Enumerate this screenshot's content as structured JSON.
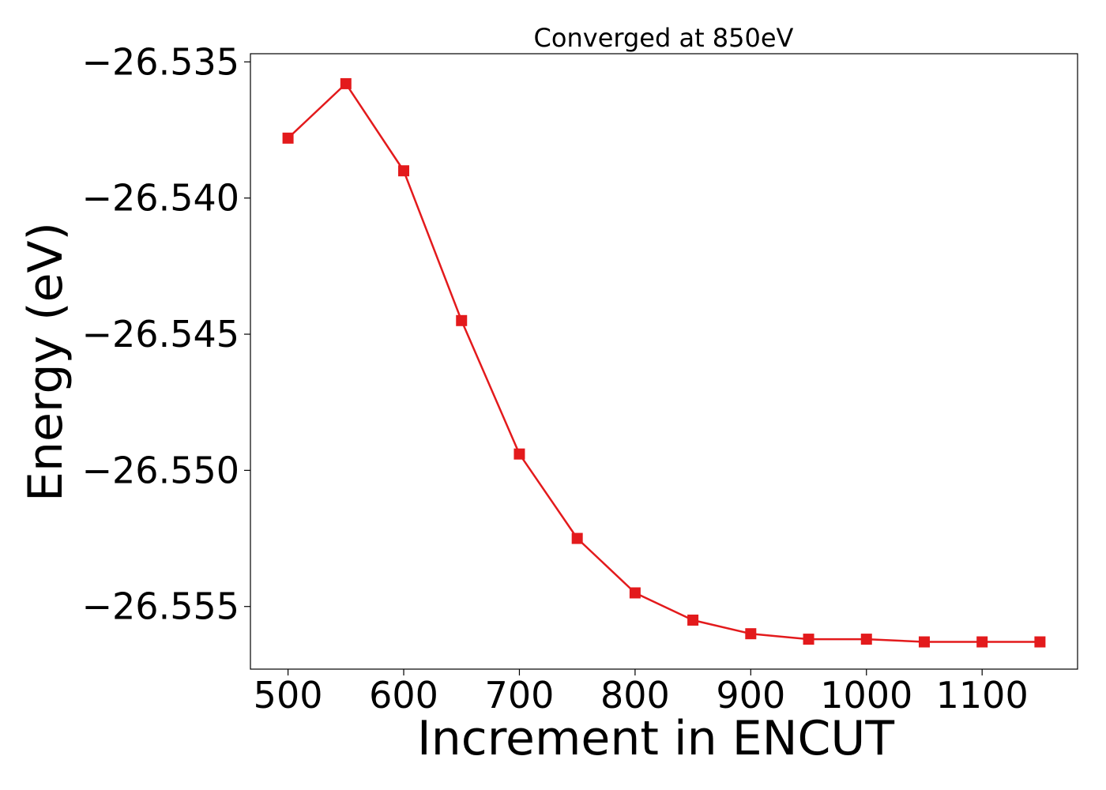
{
  "chart_data": {
    "type": "line",
    "title": "Converged at 850eV",
    "xlabel": "Increment in ENCUT",
    "ylabel": "Energy (eV)",
    "x": [
      500,
      550,
      600,
      650,
      700,
      750,
      800,
      850,
      900,
      950,
      1000,
      1050,
      1100,
      1150
    ],
    "series": [
      {
        "values": [
          -26.5378,
          -26.5358,
          -26.539,
          -26.5445,
          -26.5494,
          -26.5525,
          -26.5545,
          -26.5555,
          -26.556,
          -26.5562,
          -26.5562,
          -26.5563,
          -26.5563,
          -26.5563
        ],
        "color": "#e31a1c",
        "marker": "square"
      }
    ],
    "xlim": [
      467.5,
      1182.5
    ],
    "ylim": [
      -26.5573,
      -26.5347
    ],
    "xticks": [
      500,
      600,
      700,
      800,
      900,
      1000,
      1100
    ],
    "xtick_labels": [
      "500",
      "600",
      "700",
      "800",
      "900",
      "1000",
      "1100"
    ],
    "yticks": [
      -26.535,
      -26.54,
      -26.545,
      -26.55,
      -26.555
    ],
    "ytick_labels": [
      "−26.535",
      "−26.540",
      "−26.545",
      "−26.550",
      "−26.555"
    ],
    "grid": false,
    "legend": "none"
  }
}
